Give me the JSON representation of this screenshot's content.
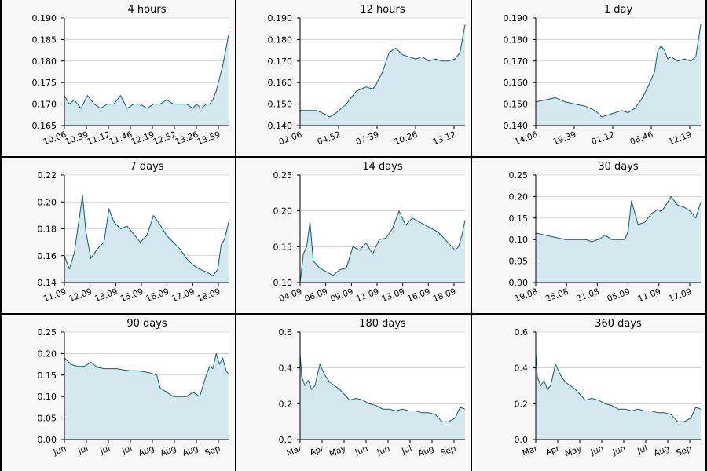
{
  "chart_data": [
    {
      "type": "area",
      "title": "4 hours",
      "ylim": [
        0.165,
        0.19
      ],
      "yticks": [
        "0.165",
        "0.170",
        "0.175",
        "0.180",
        "0.185",
        "0.190"
      ],
      "xtick_labels": [
        "10:06",
        "10:39",
        "11:12",
        "11:46",
        "12:19",
        "12:52",
        "13:26",
        "13:59"
      ],
      "grid": true,
      "series": [
        {
          "x": [
            0,
            3,
            6,
            10,
            14,
            18,
            22,
            26,
            30,
            34,
            38,
            42,
            46,
            50,
            54,
            58,
            62,
            66,
            70,
            74,
            78,
            80,
            83,
            86,
            88,
            90,
            92,
            94,
            96,
            98,
            100
          ],
          "values": [
            0.172,
            0.17,
            0.171,
            0.169,
            0.172,
            0.17,
            0.169,
            0.17,
            0.17,
            0.172,
            0.169,
            0.17,
            0.17,
            0.169,
            0.17,
            0.17,
            0.171,
            0.17,
            0.17,
            0.17,
            0.169,
            0.17,
            0.169,
            0.17,
            0.17,
            0.171,
            0.173,
            0.176,
            0.179,
            0.183,
            0.187
          ]
        }
      ]
    },
    {
      "type": "area",
      "title": "12 hours",
      "ylim": [
        0.14,
        0.19
      ],
      "yticks": [
        "0.140",
        "0.150",
        "0.160",
        "0.170",
        "0.180",
        "0.190"
      ],
      "xtick_labels": [
        "02:06",
        "04:52",
        "07:39",
        "10:26",
        "13:12"
      ],
      "grid": true,
      "series": [
        {
          "x": [
            0,
            10,
            16,
            18,
            22,
            28,
            34,
            40,
            44,
            46,
            50,
            54,
            58,
            62,
            66,
            70,
            74,
            78,
            82,
            86,
            90,
            94,
            97,
            100
          ],
          "values": [
            0.147,
            0.147,
            0.145,
            0.144,
            0.146,
            0.15,
            0.156,
            0.158,
            0.157,
            0.159,
            0.165,
            0.174,
            0.176,
            0.173,
            0.172,
            0.171,
            0.172,
            0.17,
            0.171,
            0.17,
            0.17,
            0.171,
            0.174,
            0.187
          ]
        }
      ]
    },
    {
      "type": "area",
      "title": "1 day",
      "ylim": [
        0.14,
        0.19
      ],
      "yticks": [
        "0.140",
        "0.150",
        "0.160",
        "0.170",
        "0.180",
        "0.190"
      ],
      "xtick_labels": [
        "14:06",
        "19:39",
        "01:12",
        "06:46",
        "12:19"
      ],
      "grid": true,
      "series": [
        {
          "x": [
            0,
            6,
            12,
            18,
            24,
            30,
            36,
            40,
            44,
            48,
            52,
            56,
            60,
            64,
            68,
            72,
            74,
            76,
            78,
            80,
            82,
            86,
            90,
            94,
            97,
            100
          ],
          "values": [
            0.151,
            0.152,
            0.153,
            0.151,
            0.15,
            0.149,
            0.147,
            0.144,
            0.145,
            0.146,
            0.147,
            0.146,
            0.148,
            0.152,
            0.158,
            0.165,
            0.175,
            0.177,
            0.175,
            0.171,
            0.172,
            0.17,
            0.171,
            0.17,
            0.172,
            0.187
          ]
        }
      ]
    },
    {
      "type": "area",
      "title": "7 days",
      "ylim": [
        0.14,
        0.22
      ],
      "yticks": [
        "0.14",
        "0.16",
        "0.18",
        "0.20",
        "0.22"
      ],
      "xtick_labels": [
        "11.09",
        "12.09",
        "13.09",
        "15.09",
        "16.09",
        "17.09",
        "18.09"
      ],
      "grid": true,
      "series": [
        {
          "x": [
            0,
            3,
            6,
            9,
            11,
            13,
            16,
            20,
            24,
            27,
            30,
            34,
            38,
            42,
            46,
            50,
            54,
            58,
            62,
            66,
            70,
            74,
            78,
            82,
            86,
            90,
            93,
            95,
            97,
            100
          ],
          "values": [
            0.16,
            0.15,
            0.162,
            0.188,
            0.205,
            0.178,
            0.158,
            0.165,
            0.17,
            0.195,
            0.185,
            0.18,
            0.182,
            0.176,
            0.17,
            0.175,
            0.19,
            0.183,
            0.175,
            0.17,
            0.165,
            0.158,
            0.153,
            0.15,
            0.148,
            0.145,
            0.15,
            0.168,
            0.172,
            0.187
          ]
        }
      ]
    },
    {
      "type": "area",
      "title": "14 days",
      "ylim": [
        0.1,
        0.25
      ],
      "yticks": [
        "0.10",
        "0.15",
        "0.20",
        "0.25"
      ],
      "xtick_labels": [
        "04.09",
        "06.09",
        "09.09",
        "11.09",
        "13.09",
        "16.09",
        "18.09"
      ],
      "grid": true,
      "series": [
        {
          "x": [
            0,
            2,
            4,
            6,
            8,
            12,
            16,
            20,
            24,
            28,
            32,
            36,
            40,
            44,
            48,
            52,
            56,
            60,
            64,
            68,
            72,
            76,
            80,
            84,
            88,
            92,
            94,
            96,
            98,
            100
          ],
          "values": [
            0.1,
            0.14,
            0.15,
            0.185,
            0.13,
            0.12,
            0.115,
            0.11,
            0.118,
            0.12,
            0.15,
            0.145,
            0.155,
            0.14,
            0.16,
            0.162,
            0.175,
            0.2,
            0.18,
            0.19,
            0.185,
            0.18,
            0.175,
            0.17,
            0.16,
            0.15,
            0.145,
            0.15,
            0.165,
            0.187
          ]
        }
      ]
    },
    {
      "type": "area",
      "title": "30 days",
      "ylim": [
        0.0,
        0.25
      ],
      "yticks": [
        "0.00",
        "0.05",
        "0.10",
        "0.15",
        "0.20",
        "0.25"
      ],
      "xtick_labels": [
        "19.08",
        "25.08",
        "31.08",
        "05.09",
        "11.09",
        "17.09"
      ],
      "grid": true,
      "series": [
        {
          "x": [
            0,
            6,
            12,
            18,
            24,
            28,
            30,
            34,
            38,
            42,
            46,
            50,
            54,
            56,
            58,
            62,
            66,
            70,
            74,
            76,
            78,
            82,
            86,
            90,
            94,
            97,
            100
          ],
          "values": [
            0.115,
            0.11,
            0.105,
            0.1,
            0.1,
            0.1,
            0.1,
            0.095,
            0.1,
            0.11,
            0.1,
            0.1,
            0.1,
            0.12,
            0.19,
            0.135,
            0.14,
            0.16,
            0.17,
            0.165,
            0.175,
            0.2,
            0.18,
            0.175,
            0.165,
            0.15,
            0.187
          ]
        }
      ]
    },
    {
      "type": "area",
      "title": "90 days",
      "ylim": [
        0.0,
        0.25
      ],
      "yticks": [
        "0.00",
        "0.05",
        "0.10",
        "0.15",
        "0.20",
        "0.25"
      ],
      "xtick_labels": [
        "Jun",
        "Jul",
        "Jul",
        "Jul",
        "Aug",
        "Aug",
        "Aug",
        "Sep"
      ],
      "grid": true,
      "series": [
        {
          "x": [
            0,
            4,
            8,
            12,
            16,
            20,
            24,
            28,
            32,
            36,
            40,
            44,
            48,
            52,
            56,
            58,
            62,
            66,
            70,
            74,
            78,
            82,
            86,
            88,
            90,
            92,
            94,
            96,
            98,
            100
          ],
          "values": [
            0.19,
            0.175,
            0.17,
            0.17,
            0.18,
            0.168,
            0.165,
            0.165,
            0.165,
            0.162,
            0.16,
            0.16,
            0.158,
            0.155,
            0.15,
            0.12,
            0.11,
            0.1,
            0.1,
            0.1,
            0.11,
            0.1,
            0.15,
            0.17,
            0.165,
            0.2,
            0.175,
            0.19,
            0.16,
            0.15
          ]
        }
      ]
    },
    {
      "type": "area",
      "title": "180 days",
      "ylim": [
        0.0,
        0.6
      ],
      "yticks": [
        "0.0",
        "0.2",
        "0.4",
        "0.6"
      ],
      "xtick_labels": [
        "Mar",
        "Apr",
        "May",
        "Jun",
        "Jun",
        "Jul",
        "Aug",
        "Sep"
      ],
      "grid": true,
      "series": [
        {
          "x": [
            0,
            1,
            3,
            5,
            7,
            9,
            12,
            15,
            18,
            21,
            24,
            27,
            30,
            34,
            38,
            42,
            46,
            50,
            54,
            58,
            62,
            66,
            70,
            74,
            78,
            82,
            86,
            90,
            94,
            97,
            100
          ],
          "values": [
            0.48,
            0.35,
            0.3,
            0.33,
            0.28,
            0.3,
            0.42,
            0.36,
            0.32,
            0.3,
            0.28,
            0.25,
            0.22,
            0.23,
            0.22,
            0.2,
            0.19,
            0.17,
            0.17,
            0.16,
            0.17,
            0.16,
            0.16,
            0.15,
            0.15,
            0.14,
            0.1,
            0.1,
            0.12,
            0.18,
            0.17
          ]
        }
      ]
    },
    {
      "type": "area",
      "title": "360 days",
      "ylim": [
        0.0,
        0.6
      ],
      "yticks": [
        "0.0",
        "0.2",
        "0.4",
        "0.6"
      ],
      "xtick_labels": [
        "Mar",
        "Apr",
        "May",
        "Jun",
        "Jun",
        "Jul",
        "Aug",
        "Sep"
      ],
      "grid": true,
      "series": [
        {
          "x": [
            0,
            1,
            3,
            5,
            7,
            9,
            12,
            15,
            18,
            21,
            24,
            27,
            30,
            34,
            38,
            42,
            46,
            50,
            54,
            58,
            62,
            66,
            70,
            74,
            78,
            82,
            86,
            90,
            94,
            97,
            100
          ],
          "values": [
            0.48,
            0.35,
            0.3,
            0.33,
            0.28,
            0.3,
            0.42,
            0.36,
            0.32,
            0.3,
            0.28,
            0.25,
            0.22,
            0.23,
            0.22,
            0.2,
            0.19,
            0.17,
            0.17,
            0.16,
            0.17,
            0.16,
            0.16,
            0.15,
            0.15,
            0.14,
            0.1,
            0.1,
            0.12,
            0.18,
            0.17
          ]
        }
      ]
    }
  ],
  "colors": {
    "line": "#00607a",
    "fill": "#d6e8ef",
    "grid": "#bbbbbb",
    "panel_bg": "#f8f8f8",
    "plot_bg": "#ffffff",
    "axis": "#000000"
  }
}
